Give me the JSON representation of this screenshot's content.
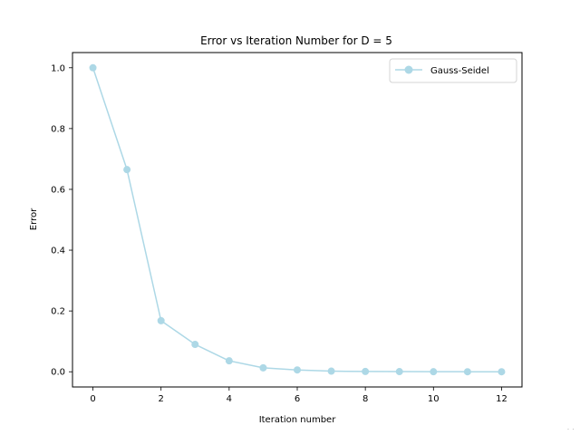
{
  "chart_data": {
    "type": "line",
    "title": "Error vs Iteration Number for D = 5",
    "xlabel": "Iteration number",
    "ylabel": "Error",
    "xlim": [
      -0.6,
      12.6
    ],
    "ylim": [
      -0.05,
      1.05
    ],
    "xticks": [
      0,
      2,
      4,
      6,
      8,
      10,
      12
    ],
    "yticks": [
      0.0,
      0.2,
      0.4,
      0.6,
      0.8,
      1.0
    ],
    "xtick_labels": [
      "0",
      "2",
      "4",
      "6",
      "8",
      "10",
      "12"
    ],
    "ytick_labels": [
      "0.0",
      "0.2",
      "0.4",
      "0.6",
      "0.8",
      "1.0"
    ],
    "grid": false,
    "legend_position": "top-right",
    "series": [
      {
        "name": "Gauss-Seidel",
        "color": "#add8e6",
        "marker": "circle",
        "x": [
          0,
          1,
          2,
          3,
          4,
          5,
          6,
          7,
          8,
          9,
          10,
          11,
          12
        ],
        "y": [
          1.0,
          0.665,
          0.168,
          0.09,
          0.036,
          0.013,
          0.006,
          0.002,
          0.001,
          0.0005,
          0.0002,
          0.0001,
          5e-05
        ]
      }
    ]
  }
}
